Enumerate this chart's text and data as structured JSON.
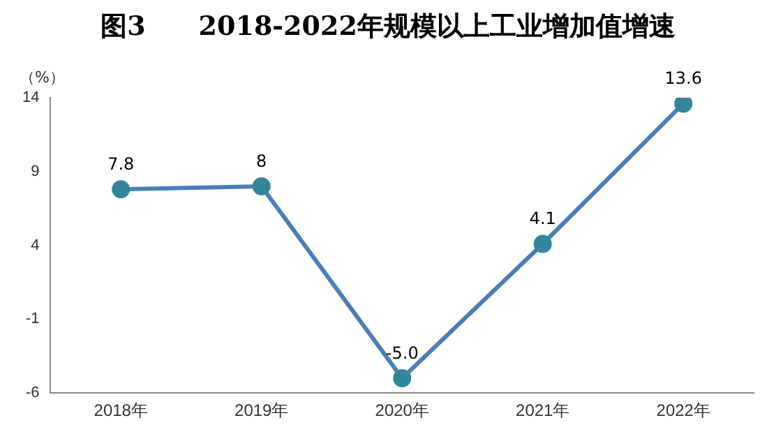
{
  "chart_data": {
    "type": "line",
    "title": "图3　　2018-2022年规模以上工业增加值增速",
    "ylabel": "（%）",
    "categories": [
      "2018年",
      "2019年",
      "2020年",
      "2021年",
      "2022年"
    ],
    "series": [
      {
        "color": "#4a7ebb",
        "values": [
          7.8,
          8,
          -5.0,
          4.1,
          13.6
        ],
        "value_labels": [
          "7.8",
          "8",
          "-5.0",
          "4.1",
          "13.6"
        ]
      }
    ],
    "ylim": [
      -6,
      14
    ],
    "yticks": [
      -6,
      -1,
      4,
      9,
      14
    ],
    "grid": false,
    "legend": false,
    "marker": "circle"
  }
}
